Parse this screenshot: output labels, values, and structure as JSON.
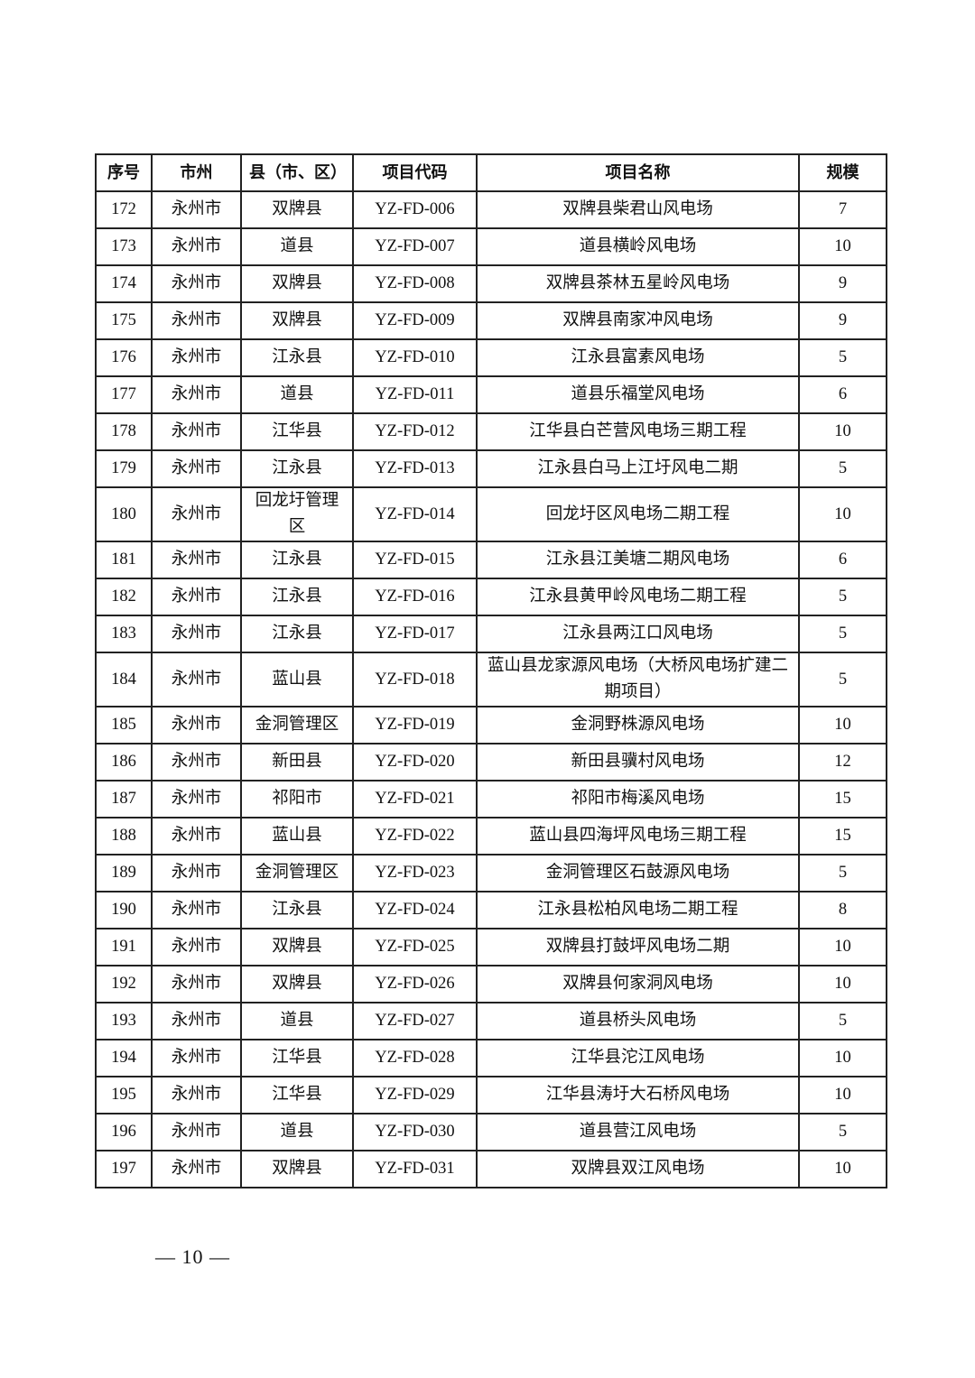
{
  "table": {
    "headers": [
      "序号",
      "市州",
      "县（市、区）",
      "项目代码",
      "项目名称",
      "规模"
    ],
    "rows": [
      [
        "172",
        "永州市",
        "双牌县",
        "YZ-FD-006",
        "双牌县柴君山风电场",
        "7"
      ],
      [
        "173",
        "永州市",
        "道县",
        "YZ-FD-007",
        "道县横岭风电场",
        "10"
      ],
      [
        "174",
        "永州市",
        "双牌县",
        "YZ-FD-008",
        "双牌县茶林五星岭风电场",
        "9"
      ],
      [
        "175",
        "永州市",
        "双牌县",
        "YZ-FD-009",
        "双牌县南家冲风电场",
        "9"
      ],
      [
        "176",
        "永州市",
        "江永县",
        "YZ-FD-010",
        "江永县富素风电场",
        "5"
      ],
      [
        "177",
        "永州市",
        "道县",
        "YZ-FD-011",
        "道县乐福堂风电场",
        "6"
      ],
      [
        "178",
        "永州市",
        "江华县",
        "YZ-FD-012",
        "江华县白芒营风电场三期工程",
        "10"
      ],
      [
        "179",
        "永州市",
        "江永县",
        "YZ-FD-013",
        "江永县白马上江圩风电二期",
        "5"
      ],
      [
        "180",
        "永州市",
        "回龙圩管理区",
        "YZ-FD-014",
        "回龙圩区风电场二期工程",
        "10"
      ],
      [
        "181",
        "永州市",
        "江永县",
        "YZ-FD-015",
        "江永县江美塘二期风电场",
        "6"
      ],
      [
        "182",
        "永州市",
        "江永县",
        "YZ-FD-016",
        "江永县黄甲岭风电场二期工程",
        "5"
      ],
      [
        "183",
        "永州市",
        "江永县",
        "YZ-FD-017",
        "江永县两江口风电场",
        "5"
      ],
      [
        "184",
        "永州市",
        "蓝山县",
        "YZ-FD-018",
        "蓝山县龙家源风电场（大桥风电场扩建二期项目）",
        "5"
      ],
      [
        "185",
        "永州市",
        "金洞管理区",
        "YZ-FD-019",
        "金洞野株源风电场",
        "10"
      ],
      [
        "186",
        "永州市",
        "新田县",
        "YZ-FD-020",
        "新田县骥村风电场",
        "12"
      ],
      [
        "187",
        "永州市",
        "祁阳市",
        "YZ-FD-021",
        "祁阳市梅溪风电场",
        "15"
      ],
      [
        "188",
        "永州市",
        "蓝山县",
        "YZ-FD-022",
        "蓝山县四海坪风电场三期工程",
        "15"
      ],
      [
        "189",
        "永州市",
        "金洞管理区",
        "YZ-FD-023",
        "金洞管理区石鼓源风电场",
        "5"
      ],
      [
        "190",
        "永州市",
        "江永县",
        "YZ-FD-024",
        "江永县松柏风电场二期工程",
        "8"
      ],
      [
        "191",
        "永州市",
        "双牌县",
        "YZ-FD-025",
        "双牌县打鼓坪风电场二期",
        "10"
      ],
      [
        "192",
        "永州市",
        "双牌县",
        "YZ-FD-026",
        "双牌县何家洞风电场",
        "10"
      ],
      [
        "193",
        "永州市",
        "道县",
        "YZ-FD-027",
        "道县桥头风电场",
        "5"
      ],
      [
        "194",
        "永州市",
        "江华县",
        "YZ-FD-028",
        "江华县沱江风电场",
        "10"
      ],
      [
        "195",
        "永州市",
        "江华县",
        "YZ-FD-029",
        "江华县涛圩大石桥风电场",
        "10"
      ],
      [
        "196",
        "永州市",
        "道县",
        "YZ-FD-030",
        "道县营江风电场",
        "5"
      ],
      [
        "197",
        "永州市",
        "双牌县",
        "YZ-FD-031",
        "双牌县双江风电场",
        "10"
      ]
    ]
  },
  "footer": {
    "page_number": "— 10 —"
  }
}
